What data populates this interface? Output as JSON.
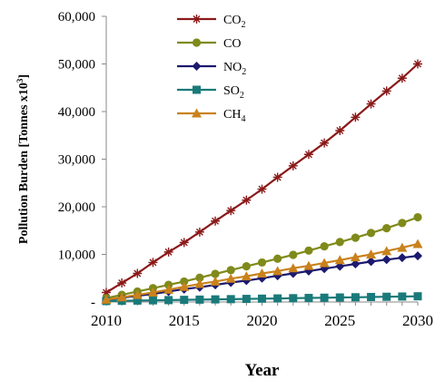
{
  "chart_data": {
    "type": "line",
    "title": "",
    "xlabel": "Year",
    "ylabel": "Pollution Burden [Tonnes x10",
    "ylabel_sup": "3",
    "ylabel_end": "]",
    "xlim": [
      2010,
      2030
    ],
    "ylim": [
      0,
      60000
    ],
    "x_ticks": [
      "2010",
      "2015",
      "2020",
      "2025",
      "2030"
    ],
    "y_ticks": [
      "-",
      "10,000",
      "20,000",
      "30,000",
      "40,000",
      "50,000",
      "60,000"
    ],
    "legend_position": "top-left",
    "grid": false,
    "x": [
      2010,
      2011,
      2012,
      2013,
      2014,
      2015,
      2016,
      2017,
      2018,
      2019,
      2020,
      2021,
      2022,
      2023,
      2024,
      2025,
      2026,
      2027,
      2028,
      2029,
      2030
    ],
    "series": [
      {
        "name": "CO",
        "sub": "2",
        "color": "#8b1a1a",
        "marker": "star",
        "values": [
          2000,
          4000,
          6000,
          8300,
          10500,
          12500,
          14700,
          17000,
          19200,
          21400,
          23700,
          26200,
          28600,
          31000,
          33400,
          36000,
          38800,
          41600,
          44300,
          47000,
          50000
        ]
      },
      {
        "name": "CO",
        "sub": "",
        "color": "#7f8a1a",
        "marker": "circle",
        "values": [
          800,
          1500,
          2200,
          2900,
          3600,
          4300,
          5100,
          5900,
          6700,
          7500,
          8300,
          9100,
          9900,
          10800,
          11700,
          12600,
          13500,
          14500,
          15500,
          16600,
          17800
        ]
      },
      {
        "name": "NO",
        "sub": "2",
        "color": "#1c1a6e",
        "marker": "diamond",
        "values": [
          400,
          900,
          1300,
          1700,
          2200,
          2700,
          3100,
          3600,
          4100,
          4500,
          5000,
          5500,
          6000,
          6500,
          7000,
          7500,
          8000,
          8500,
          8900,
          9300,
          9700
        ]
      },
      {
        "name": "SO",
        "sub": "2",
        "color": "#1a7a7a",
        "marker": "square",
        "values": [
          200,
          250,
          300,
          350,
          400,
          450,
          500,
          550,
          600,
          650,
          700,
          750,
          800,
          850,
          900,
          950,
          1000,
          1050,
          1100,
          1150,
          1200
        ]
      },
      {
        "name": "CH",
        "sub": "4",
        "color": "#c9821c",
        "marker": "triangle",
        "values": [
          500,
          1000,
          1500,
          2000,
          2600,
          3200,
          3800,
          4300,
          4900,
          5400,
          6000,
          6500,
          7100,
          7600,
          8200,
          8800,
          9400,
          10000,
          10700,
          11400,
          12200
        ]
      }
    ]
  }
}
